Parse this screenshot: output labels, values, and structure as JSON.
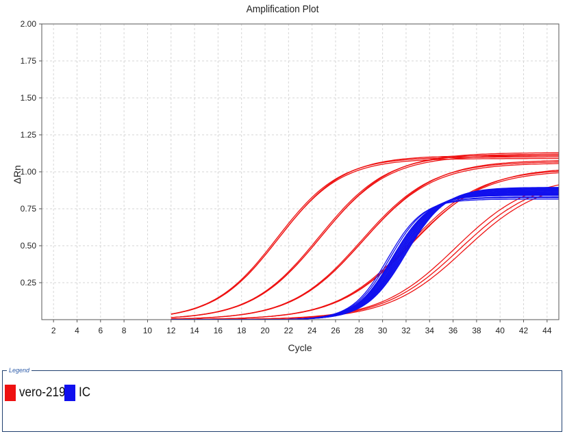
{
  "chart_data": {
    "type": "line",
    "title": "Amplification Plot",
    "xlabel": "Cycle",
    "ylabel": "ΔRn",
    "xlim": [
      1,
      45
    ],
    "ylim": [
      0,
      2.0
    ],
    "x_ticks": [
      2,
      4,
      6,
      8,
      10,
      12,
      14,
      16,
      18,
      20,
      22,
      24,
      26,
      28,
      30,
      32,
      34,
      36,
      38,
      40,
      42,
      44
    ],
    "y_ticks": [
      0.25,
      0.5,
      0.75,
      1.0,
      1.25,
      1.5,
      1.75,
      2.0
    ],
    "y_tick_labels": [
      "0.25",
      "0.50",
      "0.75",
      "1.00",
      "1.25",
      "1.50",
      "1.75",
      "2.00"
    ],
    "grid": true,
    "legend_placement": "bottom",
    "legend_title": "Legend",
    "legend": [
      {
        "name": "vero-219",
        "color": "#ee1111"
      },
      {
        "name": "IC",
        "color": "#1010ee"
      }
    ],
    "series": [
      {
        "name": "vero-219",
        "color": "#ee1111",
        "plateau": 1.1,
        "ct": 21.0,
        "slope": 2.7
      },
      {
        "name": "vero-219",
        "color": "#ee1111",
        "plateau": 1.11,
        "ct": 21.2,
        "slope": 2.75
      },
      {
        "name": "vero-219",
        "color": "#ee1111",
        "plateau": 1.09,
        "ct": 21.1,
        "slope": 2.7
      },
      {
        "name": "vero-219",
        "color": "#ee1111",
        "plateau": 1.12,
        "ct": 24.6,
        "slope": 2.9
      },
      {
        "name": "vero-219",
        "color": "#ee1111",
        "plateau": 1.13,
        "ct": 24.8,
        "slope": 2.95
      },
      {
        "name": "vero-219",
        "color": "#ee1111",
        "plateau": 1.11,
        "ct": 24.7,
        "slope": 2.9
      },
      {
        "name": "vero-219",
        "color": "#ee1111",
        "plateau": 1.07,
        "ct": 28.2,
        "slope": 3.0
      },
      {
        "name": "vero-219",
        "color": "#ee1111",
        "plateau": 1.08,
        "ct": 28.4,
        "slope": 3.05
      },
      {
        "name": "vero-219",
        "color": "#ee1111",
        "plateau": 1.06,
        "ct": 28.3,
        "slope": 3.0
      },
      {
        "name": "vero-219",
        "color": "#ee1111",
        "plateau": 1.02,
        "ct": 32.2,
        "slope": 3.1
      },
      {
        "name": "vero-219",
        "color": "#ee1111",
        "plateau": 1.03,
        "ct": 32.5,
        "slope": 3.15
      },
      {
        "name": "vero-219",
        "color": "#ee1111",
        "plateau": 1.01,
        "ct": 32.3,
        "slope": 3.1
      },
      {
        "name": "vero-219",
        "color": "#ee1111",
        "plateau": 0.97,
        "ct": 36.2,
        "slope": 3.2
      },
      {
        "name": "vero-219",
        "color": "#ee1111",
        "plateau": 0.96,
        "ct": 36.6,
        "slope": 3.25
      },
      {
        "name": "vero-219",
        "color": "#ee1111",
        "plateau": 0.95,
        "ct": 37.0,
        "slope": 3.25
      },
      {
        "name": "IC",
        "color": "#1010ee",
        "plateau": 0.815,
        "ct": 30.4,
        "slope": 1.5
      },
      {
        "name": "IC",
        "color": "#1010ee",
        "plateau": 0.825,
        "ct": 30.6,
        "slope": 1.52
      },
      {
        "name": "IC",
        "color": "#1010ee",
        "plateau": 0.83,
        "ct": 30.8,
        "slope": 1.55
      },
      {
        "name": "IC",
        "color": "#1010ee",
        "plateau": 0.84,
        "ct": 30.9,
        "slope": 1.55
      },
      {
        "name": "IC",
        "color": "#1010ee",
        "plateau": 0.845,
        "ct": 31.0,
        "slope": 1.57
      },
      {
        "name": "IC",
        "color": "#1010ee",
        "plateau": 0.85,
        "ct": 31.1,
        "slope": 1.58
      },
      {
        "name": "IC",
        "color": "#1010ee",
        "plateau": 0.855,
        "ct": 31.2,
        "slope": 1.6
      },
      {
        "name": "IC",
        "color": "#1010ee",
        "plateau": 0.86,
        "ct": 31.3,
        "slope": 1.6
      },
      {
        "name": "IC",
        "color": "#1010ee",
        "plateau": 0.865,
        "ct": 31.4,
        "slope": 1.62
      },
      {
        "name": "IC",
        "color": "#1010ee",
        "plateau": 0.87,
        "ct": 31.5,
        "slope": 1.63
      },
      {
        "name": "IC",
        "color": "#1010ee",
        "plateau": 0.875,
        "ct": 31.6,
        "slope": 1.65
      },
      {
        "name": "IC",
        "color": "#1010ee",
        "plateau": 0.88,
        "ct": 31.7,
        "slope": 1.66
      },
      {
        "name": "IC",
        "color": "#1010ee",
        "plateau": 0.885,
        "ct": 31.8,
        "slope": 1.68
      },
      {
        "name": "IC",
        "color": "#1010ee",
        "plateau": 0.89,
        "ct": 31.9,
        "slope": 1.68
      },
      {
        "name": "IC",
        "color": "#1010ee",
        "plateau": 0.895,
        "ct": 32.0,
        "slope": 1.7
      }
    ]
  }
}
